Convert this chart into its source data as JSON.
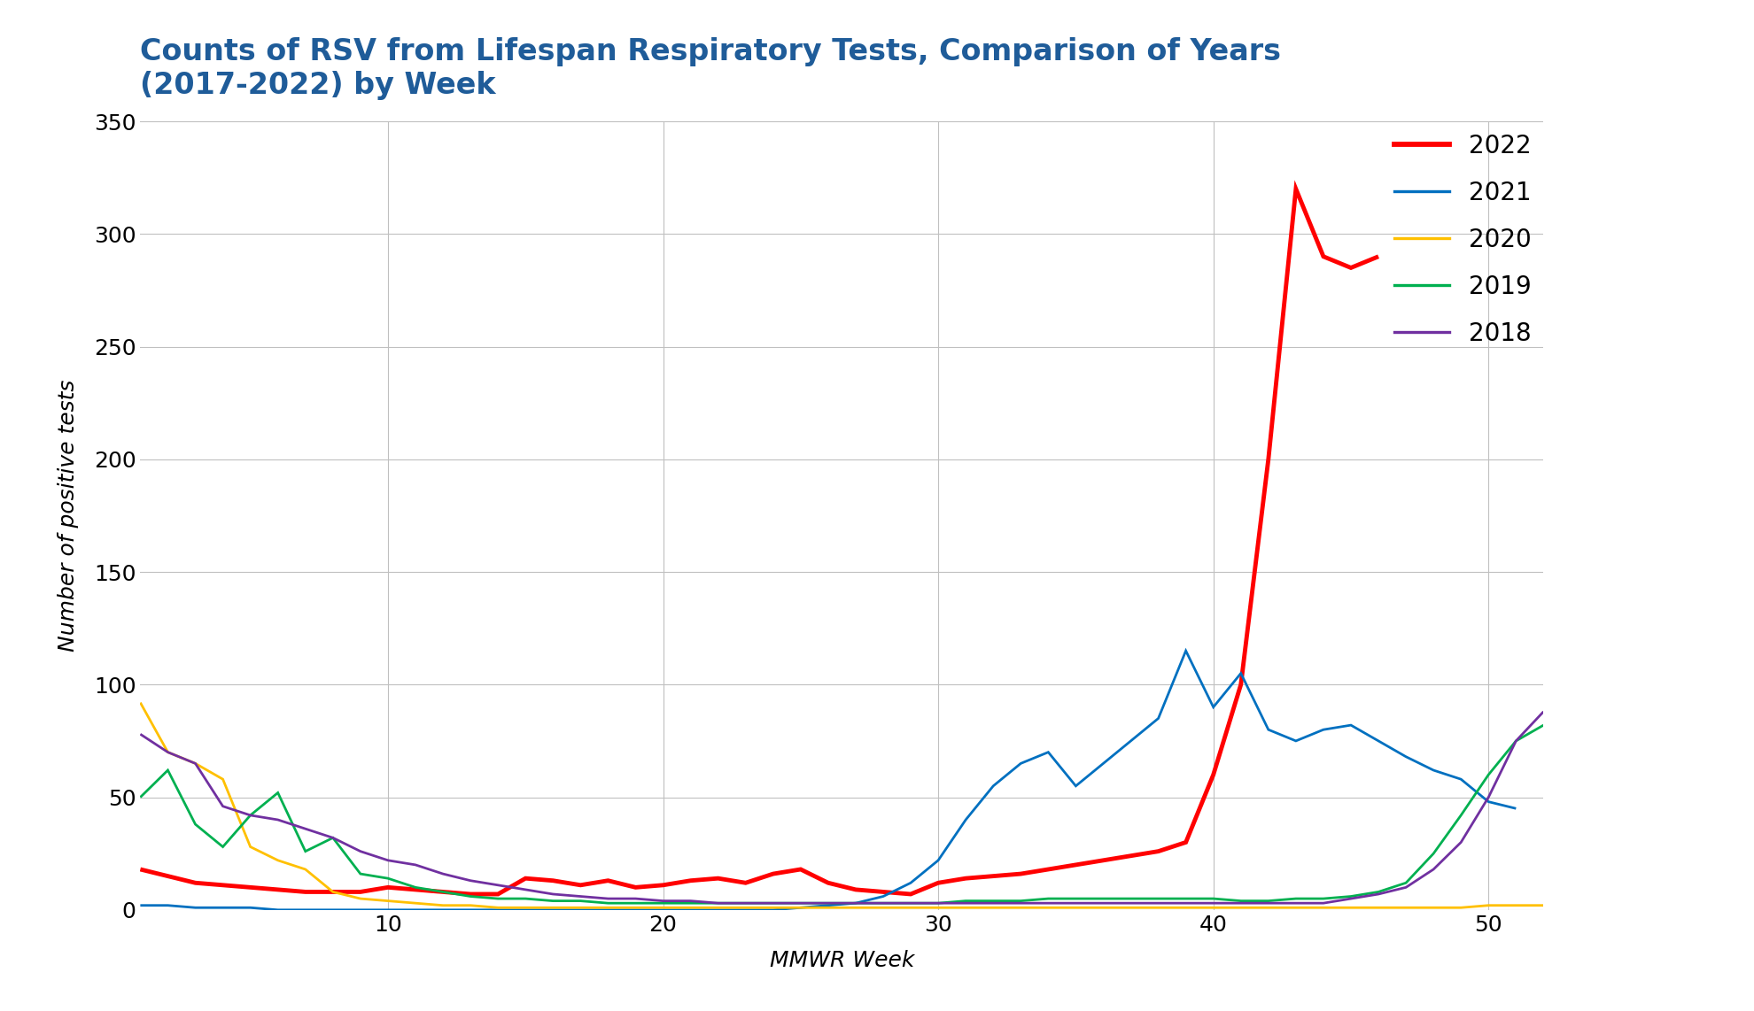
{
  "title": "Counts of RSV from Lifespan Respiratory Tests, Comparison of Years\n(2017-2022) by Week",
  "xlabel": "MMWR Week",
  "ylabel": "Number of positive tests",
  "title_color": "#1F5C99",
  "background_color": "#ffffff",
  "grid_color": "#c0c0c0",
  "ylim": [
    0,
    350
  ],
  "xlim": [
    1,
    52
  ],
  "yticks": [
    0,
    50,
    100,
    150,
    200,
    250,
    300,
    350
  ],
  "xticks": [
    10,
    20,
    30,
    40,
    50
  ],
  "series": {
    "2022": {
      "color": "#ff0000",
      "linewidth": 3.5,
      "weeks": [
        1,
        2,
        3,
        4,
        5,
        6,
        7,
        8,
        9,
        10,
        11,
        12,
        13,
        14,
        15,
        16,
        17,
        18,
        19,
        20,
        21,
        22,
        23,
        24,
        25,
        26,
        27,
        28,
        29,
        30,
        31,
        32,
        33,
        34,
        35,
        36,
        37,
        38,
        39,
        40,
        41,
        42,
        43,
        44,
        45,
        46
      ],
      "values": [
        18,
        15,
        12,
        11,
        10,
        9,
        8,
        8,
        8,
        10,
        9,
        8,
        7,
        7,
        14,
        13,
        11,
        13,
        10,
        11,
        13,
        14,
        12,
        16,
        18,
        12,
        9,
        8,
        7,
        12,
        14,
        15,
        16,
        18,
        20,
        22,
        24,
        26,
        30,
        60,
        100,
        200,
        320,
        290,
        285,
        290
      ]
    },
    "2021": {
      "color": "#0070C0",
      "linewidth": 2.0,
      "weeks": [
        1,
        2,
        3,
        4,
        5,
        6,
        7,
        8,
        9,
        10,
        11,
        12,
        13,
        14,
        15,
        16,
        17,
        18,
        19,
        20,
        21,
        22,
        23,
        24,
        25,
        26,
        27,
        28,
        29,
        30,
        31,
        32,
        33,
        34,
        35,
        36,
        37,
        38,
        39,
        40,
        41,
        42,
        43,
        44,
        45,
        46,
        47,
        48,
        49,
        50,
        51
      ],
      "values": [
        2,
        2,
        1,
        1,
        1,
        0,
        0,
        0,
        0,
        0,
        0,
        0,
        0,
        0,
        0,
        0,
        0,
        0,
        0,
        0,
        0,
        0,
        0,
        0,
        1,
        2,
        3,
        6,
        12,
        22,
        40,
        55,
        65,
        70,
        55,
        65,
        75,
        85,
        115,
        90,
        105,
        80,
        75,
        80,
        82,
        75,
        68,
        62,
        58,
        48,
        45
      ]
    },
    "2020": {
      "color": "#FFC000",
      "linewidth": 2.0,
      "weeks": [
        1,
        2,
        3,
        4,
        5,
        6,
        7,
        8,
        9,
        10,
        11,
        12,
        13,
        14,
        15,
        16,
        17,
        18,
        19,
        20,
        21,
        22,
        23,
        24,
        25,
        26,
        27,
        28,
        29,
        30,
        31,
        32,
        33,
        34,
        35,
        36,
        37,
        38,
        39,
        40,
        41,
        42,
        43,
        44,
        45,
        46,
        47,
        48,
        49,
        50,
        51,
        52
      ],
      "values": [
        92,
        70,
        65,
        58,
        28,
        22,
        18,
        8,
        5,
        4,
        3,
        2,
        2,
        1,
        1,
        1,
        1,
        1,
        1,
        1,
        1,
        1,
        1,
        1,
        1,
        1,
        1,
        1,
        1,
        1,
        1,
        1,
        1,
        1,
        1,
        1,
        1,
        1,
        1,
        1,
        1,
        1,
        1,
        1,
        1,
        1,
        1,
        1,
        1,
        2,
        2,
        2
      ]
    },
    "2019": {
      "color": "#00B050",
      "linewidth": 2.0,
      "weeks": [
        1,
        2,
        3,
        4,
        5,
        6,
        7,
        8,
        9,
        10,
        11,
        12,
        13,
        14,
        15,
        16,
        17,
        18,
        19,
        20,
        21,
        22,
        23,
        24,
        25,
        26,
        27,
        28,
        29,
        30,
        31,
        32,
        33,
        34,
        35,
        36,
        37,
        38,
        39,
        40,
        41,
        42,
        43,
        44,
        45,
        46,
        47,
        48,
        49,
        50,
        51,
        52
      ],
      "values": [
        50,
        62,
        38,
        28,
        42,
        52,
        26,
        32,
        16,
        14,
        10,
        8,
        6,
        5,
        5,
        4,
        4,
        3,
        3,
        3,
        3,
        3,
        3,
        3,
        3,
        3,
        3,
        3,
        3,
        3,
        4,
        4,
        4,
        5,
        5,
        5,
        5,
        5,
        5,
        5,
        4,
        4,
        5,
        5,
        6,
        8,
        12,
        25,
        42,
        60,
        75,
        82
      ]
    },
    "2018": {
      "color": "#7030A0",
      "linewidth": 2.0,
      "weeks": [
        1,
        2,
        3,
        4,
        5,
        6,
        7,
        8,
        9,
        10,
        11,
        12,
        13,
        14,
        15,
        16,
        17,
        18,
        19,
        20,
        21,
        22,
        23,
        24,
        25,
        26,
        27,
        28,
        29,
        30,
        31,
        32,
        33,
        34,
        35,
        36,
        37,
        38,
        39,
        40,
        41,
        42,
        43,
        44,
        45,
        46,
        47,
        48,
        49,
        50,
        51,
        52
      ],
      "values": [
        78,
        70,
        65,
        46,
        42,
        40,
        36,
        32,
        26,
        22,
        20,
        16,
        13,
        11,
        9,
        7,
        6,
        5,
        5,
        4,
        4,
        3,
        3,
        3,
        3,
        3,
        3,
        3,
        3,
        3,
        3,
        3,
        3,
        3,
        3,
        3,
        3,
        3,
        3,
        3,
        3,
        3,
        3,
        3,
        5,
        7,
        10,
        18,
        30,
        50,
        75,
        88
      ]
    }
  },
  "legend_order": [
    "2022",
    "2021",
    "2020",
    "2019",
    "2018"
  ],
  "legend_fontsize": 20,
  "title_fontsize": 24,
  "axis_label_fontsize": 18,
  "tick_fontsize": 18
}
